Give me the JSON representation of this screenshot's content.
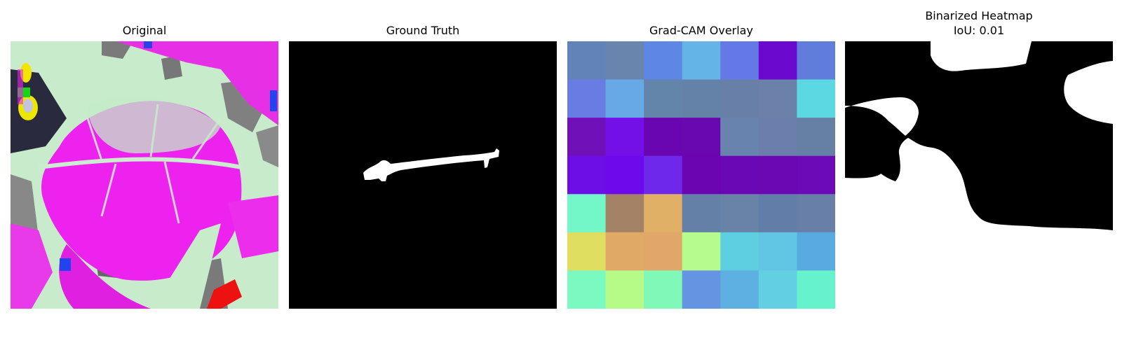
{
  "panels": [
    {
      "title": "Original"
    },
    {
      "title": "Ground Truth"
    },
    {
      "title": "Grad-CAM Overlay"
    },
    {
      "title": "Binarized Heatmap",
      "subtitle": "IoU: 0.01"
    }
  ],
  "gradcam": {
    "grid": [
      [
        "#6283b8",
        "#6a85ad",
        "#5e86e4",
        "#64b4e8",
        "#6479e5",
        "#6b09cf",
        "#607ddc"
      ],
      [
        "#697ce3",
        "#66a9e6",
        "#6485aa",
        "#6482a8",
        "#6880a8",
        "#6b81a9",
        "#5bd8e2"
      ],
      [
        "#7010b8",
        "#7310e8",
        "#6a05b2",
        "#6908ae",
        "#6884ae",
        "#6c7eab",
        "#667fa4"
      ],
      [
        "#6e0ee6",
        "#6c0aec",
        "#6d28ea",
        "#6b05b2",
        "#6908b4",
        "#6b08b3",
        "#6c0ab7"
      ],
      [
        "#73f6c8",
        "#a48266",
        "#dfb066",
        "#6580a6",
        "#6882a8",
        "#627ea8",
        "#687fa8"
      ],
      [
        "#e0de60",
        "#e0a966",
        "#e0a768",
        "#b6fb8e",
        "#5ecfe0",
        "#60c6e2",
        "#5aaae2"
      ],
      [
        "#7afac0",
        "#b6fa88",
        "#80f8b8",
        "#6494e2",
        "#5eafe2",
        "#62d0e2",
        "#66f2ca"
      ]
    ]
  },
  "colors": {
    "leaf_base": "#c4ecc8",
    "leaf_highlight": "#ee22ee",
    "mask_fg": "#ffffff",
    "mask_bg": "#000000"
  }
}
